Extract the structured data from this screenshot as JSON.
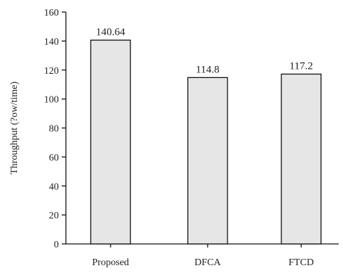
{
  "chart_data": {
    "type": "bar",
    "title": "",
    "xlabel": "",
    "ylabel": "Throughput (?ow/time)",
    "categories": [
      "Proposed",
      "DFCA",
      "FTCD"
    ],
    "values": [
      140.64,
      114.8,
      117.2
    ],
    "data_labels": [
      "140.64",
      "114.8",
      "117.2"
    ],
    "ylim": [
      0,
      160
    ],
    "yticks": [
      0,
      20,
      40,
      60,
      80,
      100,
      120,
      140,
      160
    ],
    "grid": false,
    "legend": "none",
    "colors": {
      "bar_fill": "#e6e6e6",
      "bar_stroke": "#111111",
      "axis": "#111111",
      "text": "#222222"
    }
  }
}
